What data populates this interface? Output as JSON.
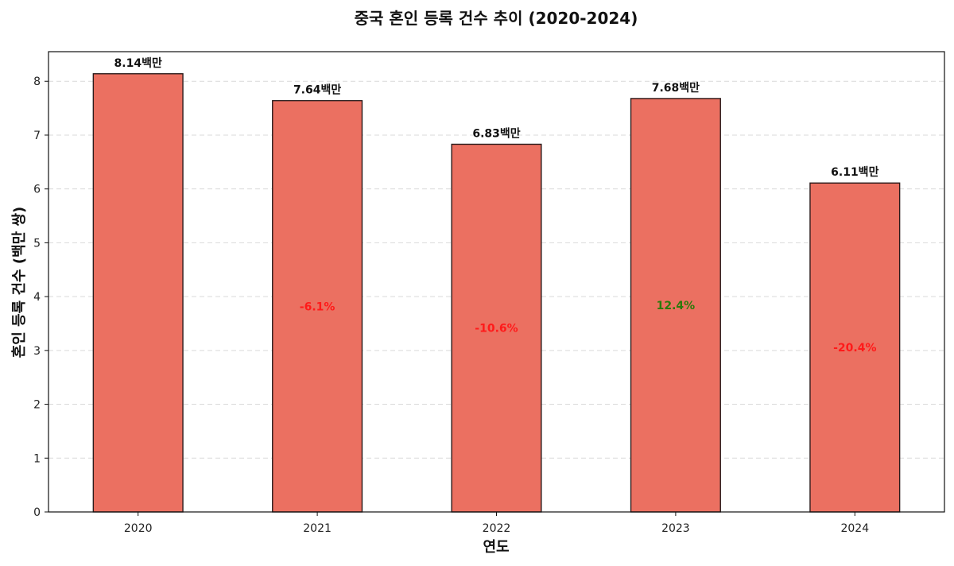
{
  "chart_data": {
    "type": "bar",
    "title": "중국 혼인 등록 건수 추이 (2020-2024)",
    "xlabel": "연도",
    "ylabel": "혼인 등록 건수 (백만 쌍)",
    "categories": [
      "2020",
      "2021",
      "2022",
      "2023",
      "2024"
    ],
    "values": [
      8.14,
      7.64,
      6.83,
      7.68,
      6.11
    ],
    "value_labels": [
      "8.14백만",
      "7.64백만",
      "6.83백만",
      "7.68백만",
      "6.11백만"
    ],
    "change_labels": [
      "",
      "-6.1%",
      "-10.6%",
      "12.4%",
      "-20.4%"
    ],
    "change_values": [
      null,
      -6.1,
      -10.6,
      12.4,
      -20.4
    ],
    "ylim": [
      0,
      8.55
    ],
    "yticks": [
      0,
      1,
      2,
      3,
      4,
      5,
      6,
      7,
      8
    ],
    "grid": true,
    "legend": "none",
    "colors": {
      "bar": "#eb7061",
      "bar_edge": "#2b1b1b",
      "negative": "#ff1a1a",
      "positive": "#2b7a0b",
      "grid": "#d9d9d9",
      "axis": "#111111"
    }
  }
}
